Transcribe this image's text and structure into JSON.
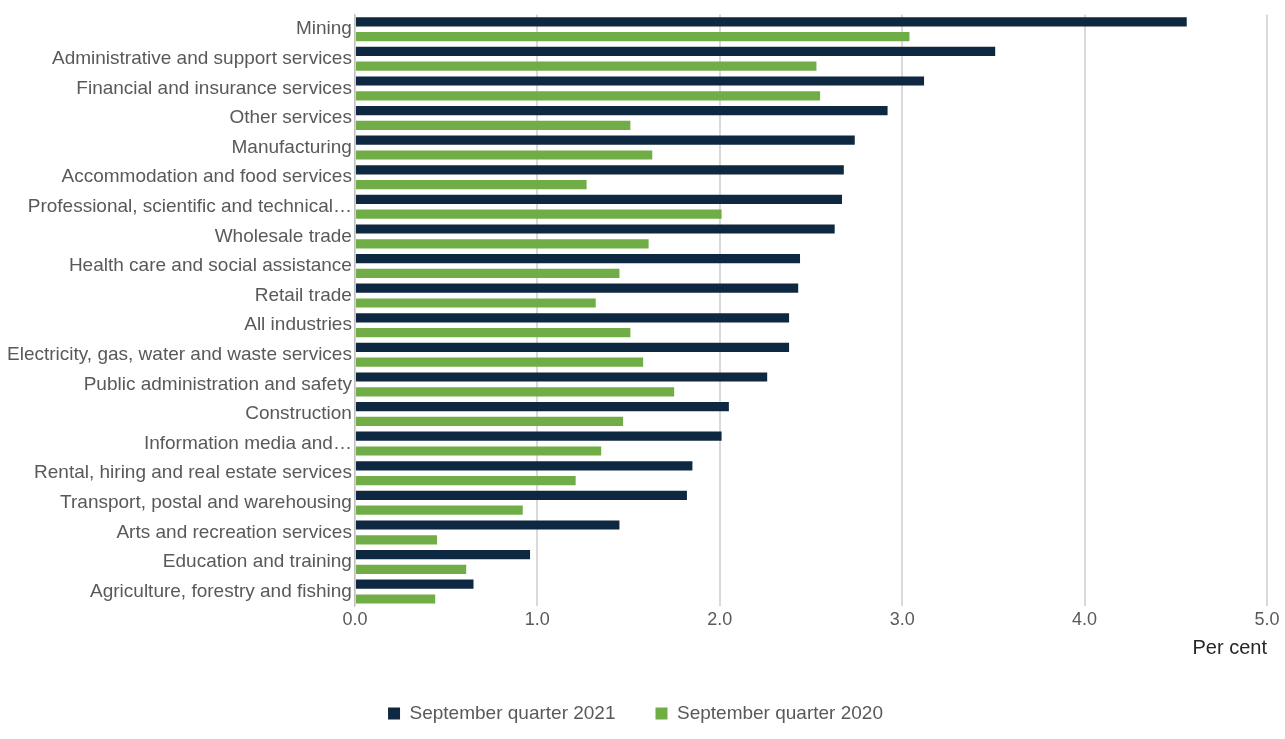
{
  "chart_data": {
    "type": "bar",
    "orientation": "horizontal",
    "xlabel": "Per cent",
    "categories": [
      "Mining",
      "Administrative and support services",
      "Financial and insurance services",
      "Other services",
      "Manufacturing",
      "Accommodation and food services",
      "Professional, scientific and technical…",
      "Wholesale trade",
      "Health care and social assistance",
      "Retail trade",
      "All industries",
      "Electricity, gas, water and waste services",
      "Public administration and safety",
      "Construction",
      "Information media and…",
      "Rental, hiring and real estate services",
      "Transport, postal and warehousing",
      "Arts and recreation services",
      "Education and training",
      "Agriculture, forestry and fishing"
    ],
    "series": [
      {
        "name": "September quarter 2021",
        "color": "#0e2841",
        "values": [
          4.56,
          3.51,
          3.12,
          2.92,
          2.74,
          2.68,
          2.67,
          2.63,
          2.44,
          2.43,
          2.38,
          2.38,
          2.26,
          2.05,
          2.01,
          1.85,
          1.82,
          1.45,
          0.96,
          0.65
        ]
      },
      {
        "name": "September quarter 2020",
        "color": "#70ad47",
        "values": [
          3.04,
          2.53,
          2.55,
          1.51,
          1.63,
          1.27,
          2.01,
          1.61,
          1.45,
          1.32,
          1.51,
          1.58,
          1.75,
          1.47,
          1.35,
          1.21,
          0.92,
          0.45,
          0.61,
          0.44
        ]
      }
    ],
    "xlim": [
      0,
      5
    ],
    "xticks": [
      {
        "value": 0,
        "label": "0.0"
      },
      {
        "value": 1,
        "label": "1.0"
      },
      {
        "value": 2,
        "label": "2.0"
      },
      {
        "value": 3,
        "label": "3.0"
      },
      {
        "value": 4,
        "label": "4.0"
      },
      {
        "value": 5,
        "label": "5.0"
      }
    ],
    "grid": "x",
    "legend": "bottom"
  }
}
